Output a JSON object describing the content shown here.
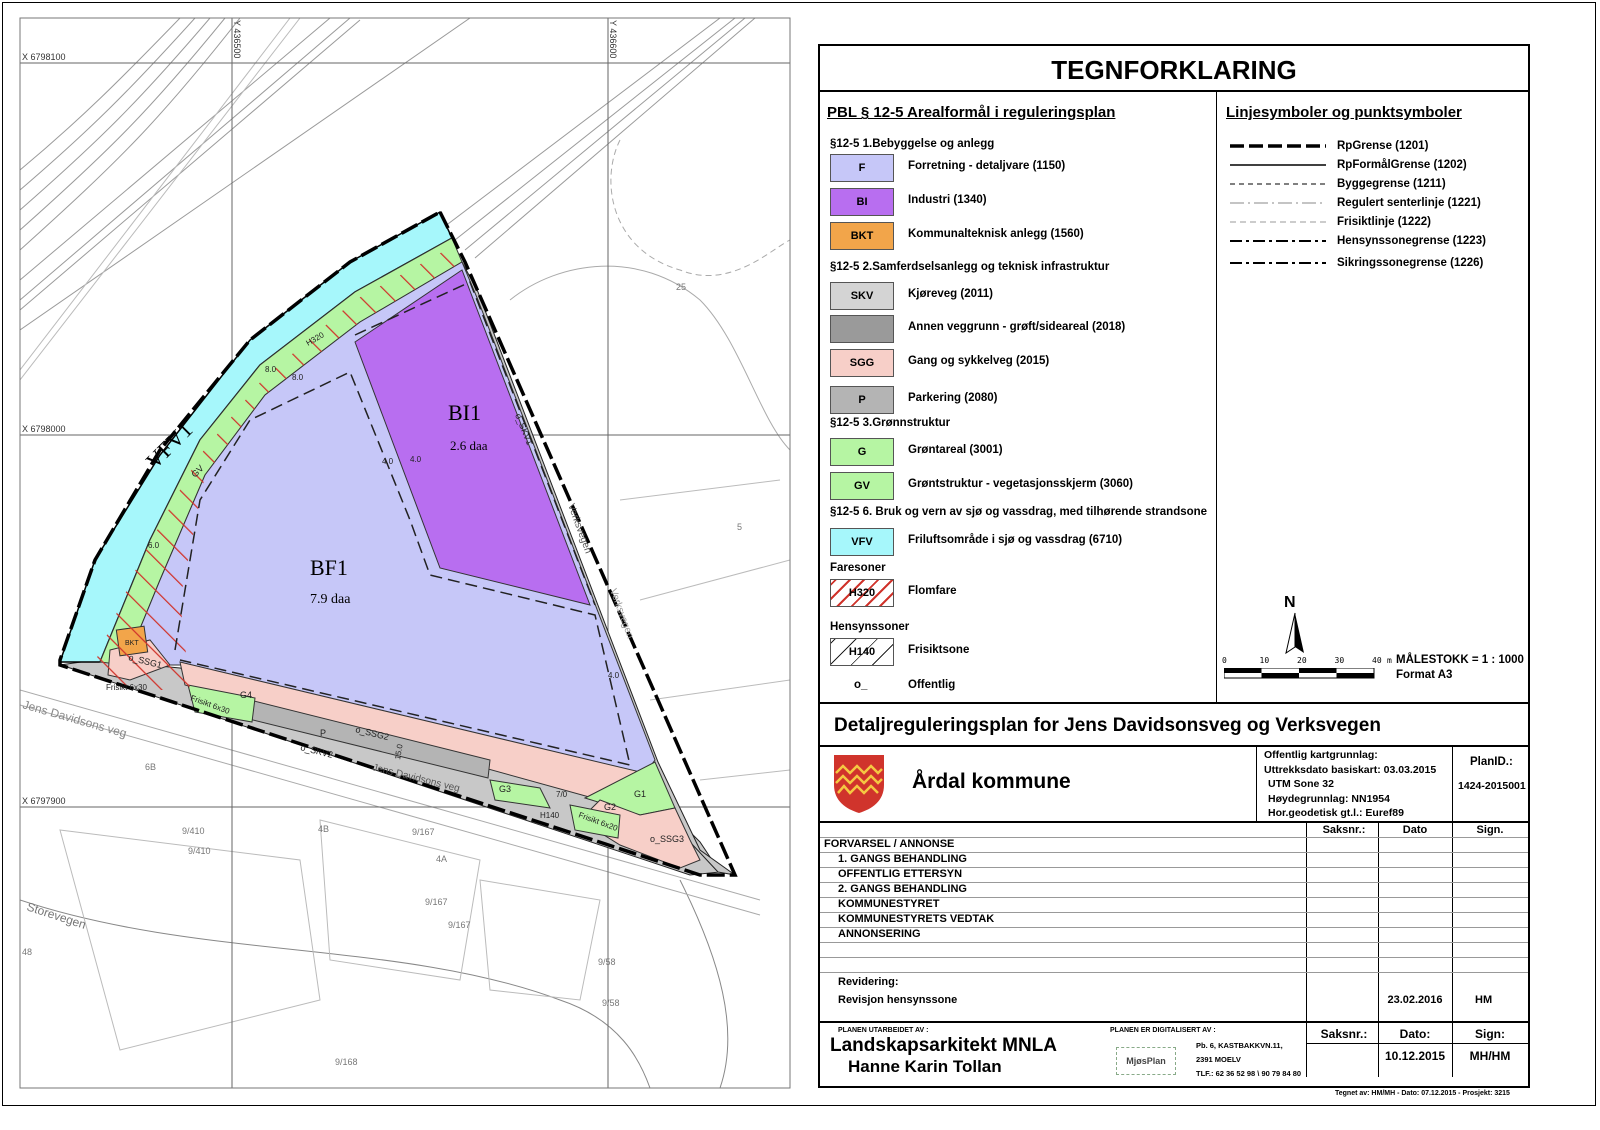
{
  "map": {
    "grid_labels": {
      "x1": "X 6798100",
      "x2": "X 6798000",
      "x3": "X 6797900",
      "y1": "Y 436500",
      "y2": "Y 436600"
    },
    "areas": {
      "vfv1": "VFV1",
      "bi1": "BI1",
      "bi1_area": "2.6 daa",
      "bf1": "BF1",
      "bf1_area": "7.9 daa",
      "skv1": "o_SKV1",
      "skv2": "o_SKV2",
      "ssg1": "o_SSG1",
      "ssg2": "o_SSG2",
      "ssg3": "o_SSG3",
      "g1": "G1",
      "g2": "G2",
      "g3": "G3",
      "g4": "G4",
      "bkt": "BKT",
      "p": "P",
      "gv": "GV",
      "frisikt1": "Frisikt 6x30",
      "frisikt2": "Frisikt 6x30",
      "frisikt3": "Frisikt 6x20",
      "h140": "H140",
      "h320": "H320"
    },
    "roads": {
      "jens": "Jens Davidsons veg",
      "jens2": "Jens Davidsons veg",
      "verks": "Verksvegen",
      "verks2": "Verksvegen",
      "store": "Storevegen"
    },
    "parcels": [
      "9/410",
      "9/410",
      "9/167",
      "9/167",
      "9/167",
      "9/58",
      "9/58",
      "9/168",
      "4A",
      "4B",
      "6B",
      "5",
      "25",
      "48"
    ],
    "dims": [
      "8.0",
      "8.0",
      "4.0",
      "4.0",
      "15.0",
      "7/0",
      "4.0",
      "6.0"
    ],
    "colors": {
      "cyan": "#a6f7fb",
      "green": "#b6f5a3",
      "lavender": "#c6c7f8",
      "purple": "#b86ef0",
      "gray": "#c8c8c8",
      "pink": "#f7cfc8",
      "orange": "#f2a54a",
      "hatch": "#d0342c"
    }
  },
  "legend": {
    "title": "TEGNFORKLARING",
    "left_heading": "PBL § 12-5 Arealformål i reguleringsplan",
    "right_heading": "Linjesymboler og punktsymboler",
    "left_items": [
      {
        "type": "section",
        "label": "§12-5 1.Bebyggelse og anlegg"
      },
      {
        "type": "item",
        "code": "F",
        "label": "Forretning - detaljvare (1150)",
        "color": "#c6c7f8"
      },
      {
        "type": "item",
        "code": "BI",
        "label": "Industri (1340)",
        "color": "#b86ef0"
      },
      {
        "type": "item",
        "code": "BKT",
        "label": "Kommunalteknisk anlegg (1560)",
        "color": "#f2a54a"
      },
      {
        "type": "section",
        "label": "§12-5 2.Samferdselsanlegg og teknisk infrastruktur"
      },
      {
        "type": "item",
        "code": "SKV",
        "label": "Kjøreveg (2011)",
        "color": "#d4d4d4"
      },
      {
        "type": "item",
        "code": "",
        "label": "Annen veggrunn - grøft/sideareal (2018)",
        "color": "#9a9a9a"
      },
      {
        "type": "item",
        "code": "SGG",
        "label": "Gang og sykkelveg (2015)",
        "color": "#f7cfc8"
      },
      {
        "type": "item",
        "code": "P",
        "label": "Parkering (2080)",
        "color": "#b4b4b4"
      },
      {
        "type": "section",
        "label": "§12-5 3.Grønnstruktur"
      },
      {
        "type": "item",
        "code": "G",
        "label": "Grøntareal (3001)",
        "color": "#b6f5a3"
      },
      {
        "type": "item",
        "code": "GV",
        "label": "Grøntstruktur - vegetasjonsskjerm (3060)",
        "color": "#b6f5a3"
      },
      {
        "type": "section",
        "label": "§12-5 6. Bruk og vern av sjø og vassdrag, med tilhørende strandsone"
      },
      {
        "type": "item",
        "code": "VFV",
        "label": "Friluftsområde i sjø og vassdrag (6710)",
        "color": "#a6f7fb"
      },
      {
        "type": "section",
        "label": "Faresoner"
      },
      {
        "type": "item",
        "code": "H320",
        "label": "Flomfare",
        "color": "hatch-red"
      },
      {
        "type": "section",
        "label": "Hensynssoner"
      },
      {
        "type": "item",
        "code": "H140",
        "label": "Frisiktsone",
        "color": "hatch-black"
      },
      {
        "type": "point",
        "code": "o_",
        "label": "Offentlig"
      }
    ],
    "line_symbols": [
      {
        "label": "RpGrense (1201)",
        "style": "rp"
      },
      {
        "label": "RpFormålGrense (1202)",
        "style": "solid"
      },
      {
        "label": "Byggegrense (1211)",
        "style": "dash"
      },
      {
        "label": "Regulert senterlinje (1221)",
        "style": "center"
      },
      {
        "label": "Frisiktlinje (1222)",
        "style": "frisikt"
      },
      {
        "label": "Hensynssonegrense (1223)",
        "style": "dashdot"
      },
      {
        "label": "Sikringssonegrense (1226)",
        "style": "dashdot"
      }
    ],
    "north": "N",
    "scale_ticks": [
      "0",
      "10",
      "20",
      "30",
      "40"
    ],
    "scale_unit": "m",
    "scale_text": "MÅLESTOKK = 1 : 1000",
    "format": "Format A3"
  },
  "plan": {
    "title": "Detaljreguleringsplan for Jens Davidsonsveg og Verksvegen",
    "municipality": "Årdal kommune",
    "basemap_lines": [
      "Offentlig kartgrunnlag:",
      "Uttrekksdato basiskart: 03.03.2015",
      "UTM Sone 32",
      "Høydegrunnlag: NN1954",
      "Hor.geodetisk gt.l.: Euref89"
    ],
    "planid_label": "PlanID.:",
    "planid": "1424-2015001",
    "status_headers": {
      "saksnr": "Saksnr.:",
      "dato": "Dato",
      "sign": "Sign."
    },
    "status_rows": [
      "FORVARSEL / ANNONSE",
      "1. GANGS BEHANDLING",
      "OFFENTLIG ETTERSYN",
      "2. GANGS BEHANDLING",
      "KOMMUNESTYRET",
      "KOMMUNESTYRETS VEDTAK",
      "ANNONSERING"
    ],
    "revision_label": "Revidering:",
    "revision_text": "Revisjon hensynssone",
    "revision_date": "23.02.2016",
    "revision_sign": "HM",
    "made_by_label": "PLANEN UTARBEIDET AV :",
    "made_by_1": "Landskapsarkitekt MNLA",
    "made_by_2": "Hanne Karin Tollan",
    "digital_label": "PLANEN ER DIGITALISERT AV :",
    "digital_logo": "MjøsPlan",
    "digital_address": [
      "Pb. 6, KASTBAKKVN.11,",
      "2391 MOELV",
      "TLF.: 62 36 52 98 \\ 90 79 84 80"
    ],
    "footer_headers": {
      "saksnr": "Saksnr.:",
      "dato": "Dato:",
      "sign": "Sign:"
    },
    "footer_date": "10.12.2015",
    "footer_sign": "MH/HM",
    "drawn_by": "Tegnet av: HM/MH - Dato: 07.12.2015 - Prosjekt: 3215"
  }
}
